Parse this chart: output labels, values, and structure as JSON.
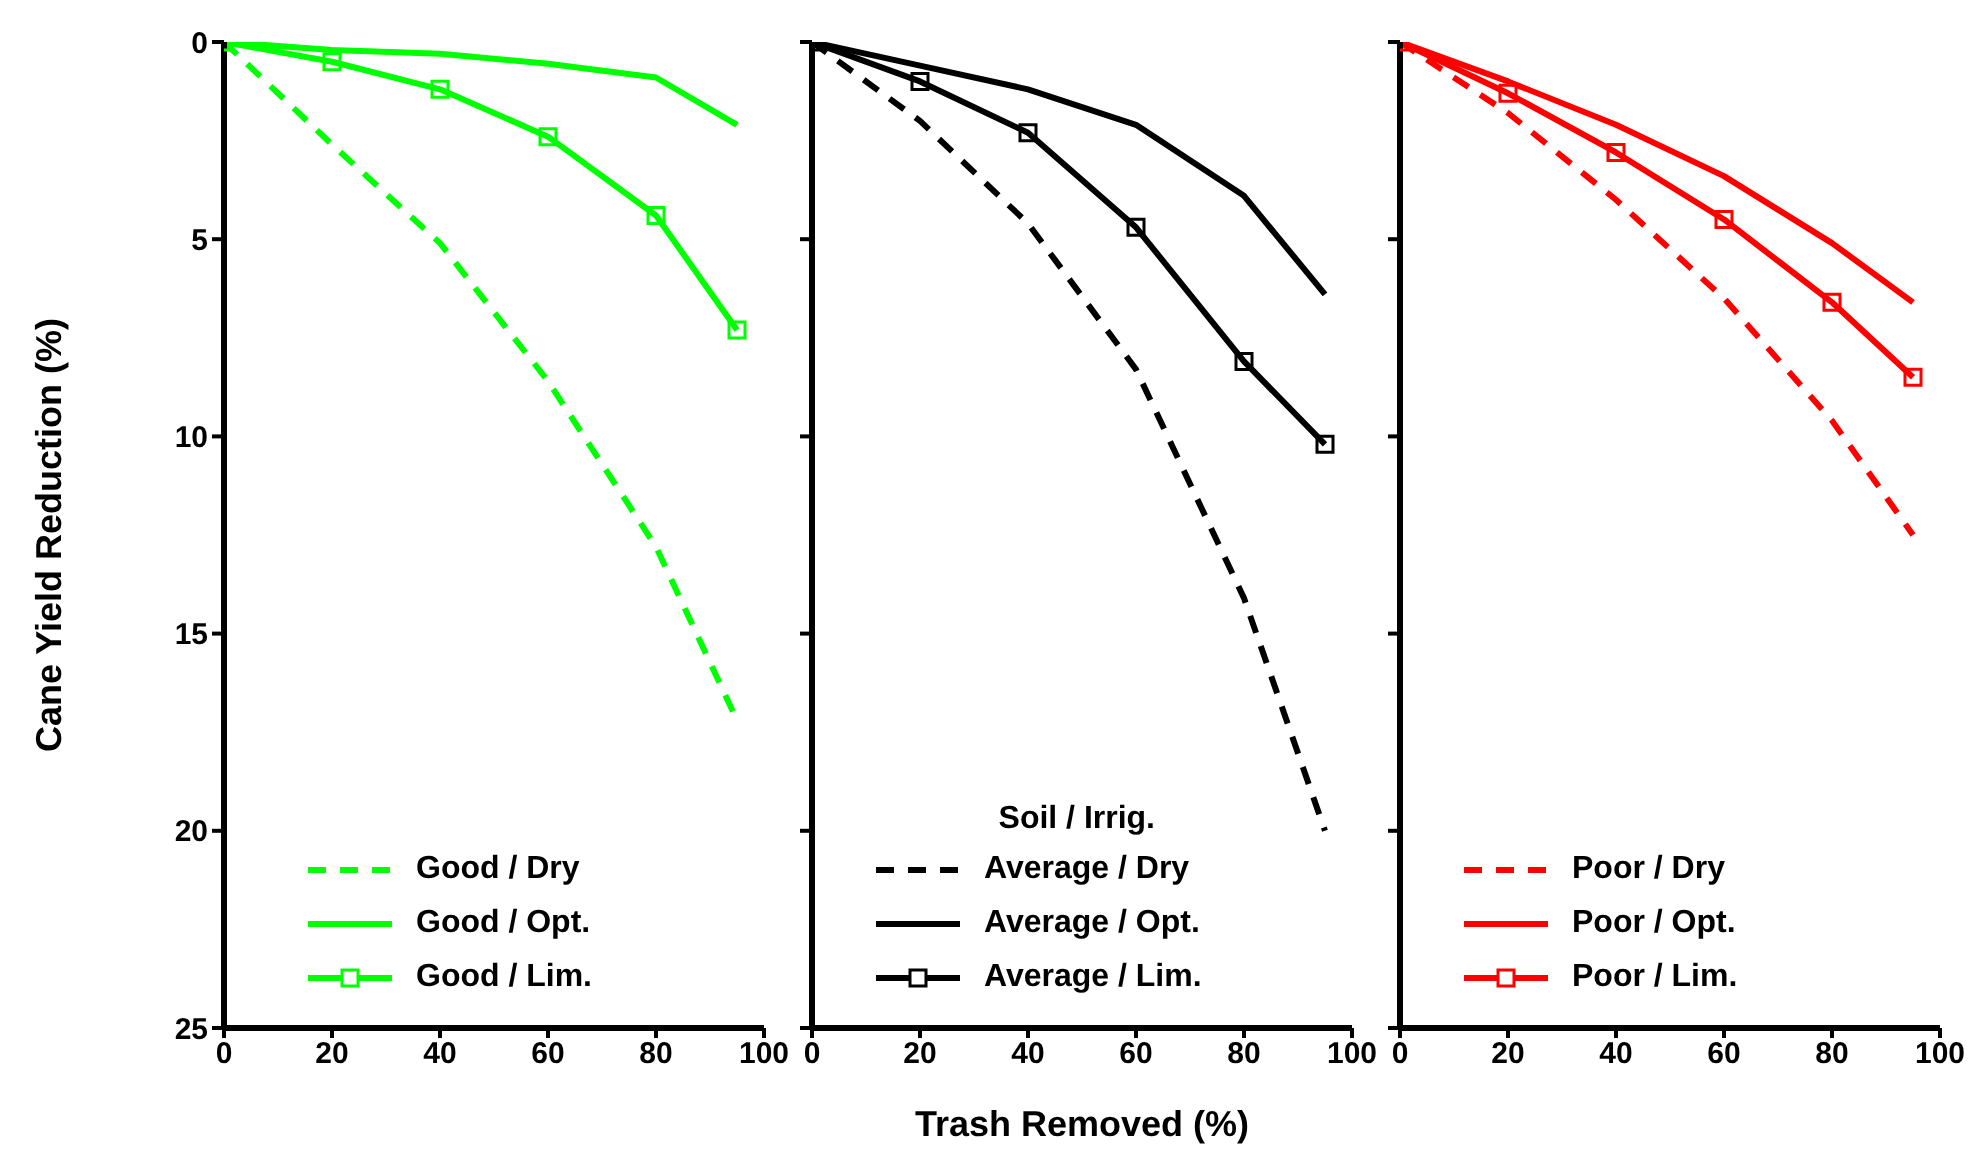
{
  "chart_data": [
    {
      "type": "line",
      "ylabel": "Cane Yield Reduction (%)",
      "x": [
        0,
        20,
        40,
        60,
        80,
        95
      ],
      "xlim": [
        0,
        100
      ],
      "xticks": [
        0,
        20,
        40,
        60,
        80,
        100
      ],
      "ylim": [
        25,
        0
      ],
      "yticks": [
        0,
        5,
        10,
        15,
        20,
        25
      ],
      "legend": "bottom left",
      "grid": false,
      "series": [
        {
          "name": "Good / Dry",
          "color": "#00ff00",
          "line_style": "dashed",
          "marker": "none",
          "values": [
            0,
            2.6,
            5.1,
            8.6,
            12.8,
            17.2
          ]
        },
        {
          "name": "Good / Opt.",
          "color": "#00ff00",
          "line_style": "solid",
          "marker": "none",
          "values": [
            0,
            0.2,
            0.3,
            0.55,
            0.9,
            2.1
          ]
        },
        {
          "name": "Good / Lim.",
          "color": "#00ff00",
          "line_style": "solid",
          "marker": "square",
          "values": [
            0,
            0.5,
            1.2,
            2.4,
            4.4,
            7.3
          ]
        }
      ]
    },
    {
      "type": "line",
      "xlabel": "Trash Removed (%)",
      "legend_title": "Soil / Irrig.",
      "x": [
        0,
        20,
        40,
        60,
        80,
        95
      ],
      "xlim": [
        0,
        100
      ],
      "xticks": [
        0,
        20,
        40,
        60,
        80,
        100
      ],
      "ylim": [
        25,
        0
      ],
      "yticks": [
        0,
        5,
        10,
        15,
        20,
        25
      ],
      "tick_labels": "x",
      "legend": "bottom",
      "grid": false,
      "series": [
        {
          "name": "Average / Dry",
          "color": "#000000",
          "line_style": "dashed",
          "marker": "none",
          "values": [
            0,
            2.0,
            4.6,
            8.3,
            14.1,
            20.0
          ]
        },
        {
          "name": "Average / Opt.",
          "color": "#000000",
          "line_style": "solid",
          "marker": "none",
          "values": [
            0,
            0.6,
            1.2,
            2.1,
            3.9,
            6.4
          ]
        },
        {
          "name": "Average / Lim.",
          "color": "#000000",
          "line_style": "solid",
          "marker": "square",
          "values": [
            0,
            1.0,
            2.3,
            4.7,
            8.1,
            10.2
          ]
        }
      ]
    },
    {
      "type": "line",
      "x": [
        0,
        20,
        40,
        60,
        80,
        95
      ],
      "xlim": [
        0,
        100
      ],
      "xticks": [
        0,
        20,
        40,
        60,
        80,
        100
      ],
      "ylim": [
        25,
        0
      ],
      "yticks": [
        0,
        5,
        10,
        15,
        20,
        25
      ],
      "tick_labels": "x",
      "legend": "bottom",
      "grid": false,
      "series": [
        {
          "name": "Poor / Dry",
          "color": "#ff0000",
          "line_style": "dashed",
          "marker": "none",
          "values": [
            0,
            1.8,
            4.0,
            6.5,
            9.6,
            12.5
          ]
        },
        {
          "name": "Poor / Opt.",
          "color": "#ff0000",
          "line_style": "solid",
          "marker": "none",
          "values": [
            0,
            1.0,
            2.1,
            3.4,
            5.1,
            6.6
          ]
        },
        {
          "name": "Poor / Lim.",
          "color": "#ff0000",
          "line_style": "solid",
          "marker": "square",
          "values": [
            0,
            1.3,
            2.8,
            4.5,
            6.6,
            8.5
          ]
        }
      ]
    }
  ]
}
